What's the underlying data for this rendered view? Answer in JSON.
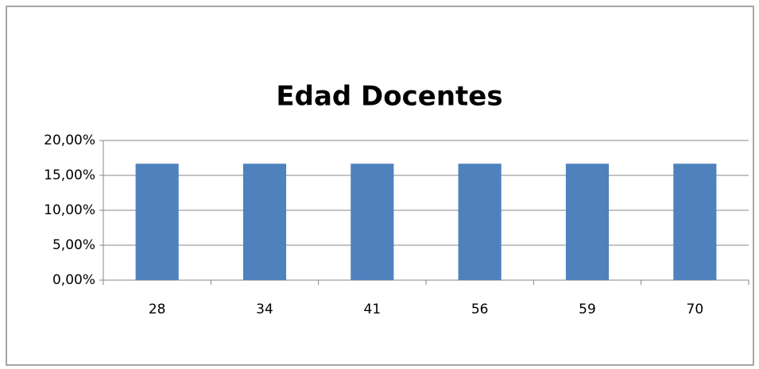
{
  "chart_data": {
    "type": "bar",
    "title": "Edad Docentes",
    "categories": [
      "28",
      "34",
      "41",
      "56",
      "59",
      "70"
    ],
    "values": [
      16.67,
      16.67,
      16.67,
      16.67,
      16.67,
      16.67
    ],
    "color": "#4f81bd",
    "ylim": [
      0,
      20
    ],
    "yticks": [
      {
        "value": 0,
        "label": "0,00%"
      },
      {
        "value": 5,
        "label": "5,00%"
      },
      {
        "value": 10,
        "label": "10,00%"
      },
      {
        "value": 15,
        "label": "15,00%"
      },
      {
        "value": 20,
        "label": "20,00%"
      }
    ],
    "grid": true
  }
}
